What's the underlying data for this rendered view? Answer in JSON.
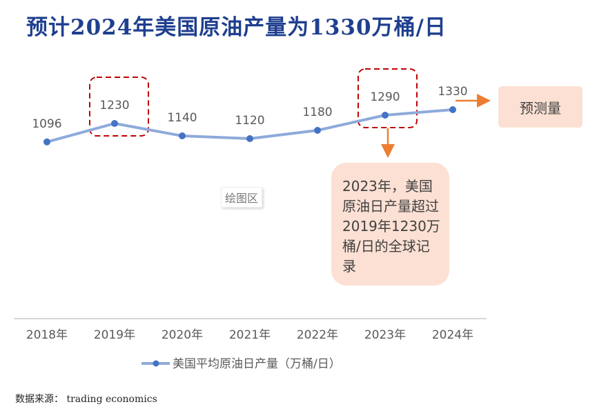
{
  "title": "预计2024年美国原油产量为1330万桶/日",
  "source": "数据来源： trading economics",
  "plot_area_label": "绘图区",
  "annotations": {
    "forecast": "预测量",
    "note": "2023年，美国原油日产量超过2019年1230万桶/日的全球记录"
  },
  "colors": {
    "title": "#1f3f8f",
    "line": "#8eaadb",
    "marker": "#4472c4",
    "highlight_box": "#c00000",
    "arrow": "#ed7d31",
    "callout_fill": "#fbe0d3"
  },
  "chart_data": {
    "type": "line",
    "categories": [
      "2018年",
      "2019年",
      "2020年",
      "2021年",
      "2022年",
      "2023年",
      "2024年"
    ],
    "series": [
      {
        "name": "美国平均原油日产量（万桶/日）",
        "values": [
          1096,
          1230,
          1140,
          1120,
          1180,
          1290,
          1330
        ]
      }
    ],
    "data_labels": [
      "1096",
      "1230",
      "1140",
      "1120",
      "1180",
      "1290",
      "1330"
    ],
    "highlighted_categories": [
      "2019年",
      "2023年"
    ],
    "legend_position": "bottom",
    "grid": false
  }
}
